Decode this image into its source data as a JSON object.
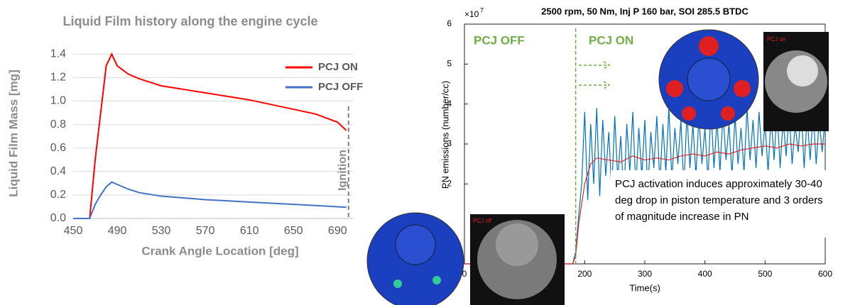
{
  "chart_data": [
    {
      "type": "line",
      "title": "Liquid Film history along the engine cycle",
      "x_label": "Crank Angle Location [deg]",
      "y_label": "Liquid Film Mass [mg]",
      "x": [
        450,
        465,
        470,
        475,
        480,
        485,
        490,
        500,
        510,
        530,
        550,
        570,
        590,
        610,
        630,
        650,
        670,
        690,
        698
      ],
      "series": [
        {
          "name": "PCJ ON",
          "color": "#ff0000",
          "values": [
            0,
            0,
            0.5,
            0.9,
            1.3,
            1.4,
            1.3,
            1.23,
            1.19,
            1.13,
            1.1,
            1.07,
            1.04,
            1.01,
            0.97,
            0.93,
            0.89,
            0.82,
            0.75
          ]
        },
        {
          "name": "PCJ OFF",
          "color": "#4472c4",
          "values": [
            0,
            0,
            0.12,
            0.2,
            0.27,
            0.31,
            0.29,
            0.25,
            0.22,
            0.19,
            0.175,
            0.16,
            0.15,
            0.14,
            0.13,
            0.12,
            0.11,
            0.1,
            0.095
          ]
        }
      ],
      "xlim": [
        450,
        704
      ],
      "xticks": [
        450,
        490,
        530,
        570,
        610,
        650,
        690
      ],
      "ylim": [
        0,
        1.45
      ],
      "yticks": [
        {
          "value": 0,
          "label": "0.0"
        },
        0.2,
        0.4,
        0.6,
        0.8,
        {
          "value": 1,
          "label": "1.0"
        },
        1.2,
        1.4
      ],
      "grid": true,
      "legend": "upper right",
      "annotations": [
        {
          "text": "Ignition",
          "x": 700
        }
      ]
    },
    {
      "type": "line",
      "title": "2500 rpm, 50 Nm, Inj P 160 bar, SOI 285.5 BTDC",
      "x_label": "Time(s)",
      "y_label": "PN emissions (number/cc)",
      "y_multiplier": {
        "base": "×10",
        "exponent": "7"
      },
      "series": [
        {
          "color": "#0072bd",
          "x": [
            0,
            5,
            10,
            15,
            20,
            25,
            30,
            35,
            40,
            45,
            50,
            55,
            60,
            65,
            70,
            75,
            80,
            85,
            90,
            95,
            100,
            105,
            110,
            115,
            120,
            125,
            130,
            135,
            140,
            145,
            150,
            155,
            160,
            165,
            170,
            175,
            180,
            185,
            190,
            195,
            200,
            205,
            210,
            215,
            220,
            225,
            230,
            235,
            240,
            245,
            250,
            255,
            260,
            265,
            270,
            275,
            280,
            285,
            290,
            295,
            300,
            305,
            310,
            315,
            320,
            325,
            330,
            335,
            340,
            345,
            350,
            355,
            360,
            365,
            370,
            375,
            380,
            385,
            390,
            395,
            400,
            405,
            410,
            415,
            420,
            425,
            430,
            435,
            440,
            445,
            450,
            455,
            460,
            465,
            470,
            475,
            480,
            485,
            490,
            495,
            500,
            505,
            510,
            515,
            520,
            525,
            530,
            535,
            540,
            545,
            550,
            555,
            560,
            565,
            570,
            575,
            580,
            585,
            590,
            595,
            600
          ],
          "values": [
            0,
            0,
            0,
            0,
            0,
            0,
            0,
            0,
            0,
            0,
            0,
            0,
            0,
            0,
            0,
            0,
            0,
            0,
            0,
            0,
            0,
            0,
            0,
            0,
            0,
            0,
            0,
            0,
            0,
            0,
            0,
            0,
            0,
            0,
            0,
            0,
            0,
            0.3,
            1.2,
            2.0,
            3.8,
            1.6,
            3.5,
            2.0,
            3.9,
            1.7,
            3.6,
            2.2,
            3.3,
            1.8,
            3.7,
            2.1,
            3.2,
            1.6,
            3.5,
            2.3,
            3.8,
            1.9,
            3.4,
            2.2,
            3.6,
            1.8,
            3.3,
            2.4,
            3.7,
            2.0,
            3.5,
            2.3,
            3.9,
            2.1,
            3.4,
            2.5,
            3.6,
            1.9,
            3.8,
            2.4,
            3.5,
            2.2,
            3.7,
            2.5,
            3.4,
            2.1,
            3.9,
            2.4,
            3.6,
            2.3,
            3.8,
            2.6,
            3.5,
            2.2,
            3.7,
            2.5,
            3.4,
            2.3,
            3.9,
            2.6,
            3.6,
            2.4,
            3.8,
            2.7,
            3.5,
            2.3,
            3.7,
            2.6,
            3.9,
            2.4,
            3.6,
            2.7,
            3.8,
            2.5,
            3.5,
            2.8,
            3.9,
            2.4,
            3.7,
            2.6,
            3.8,
            2.5,
            3.6,
            2.8,
            3.7
          ]
        },
        {
          "color": "#d62728",
          "x": [
            0,
            180,
            185,
            190,
            200,
            210,
            220,
            240,
            260,
            280,
            300,
            320,
            340,
            360,
            380,
            400,
            420,
            440,
            460,
            480,
            500,
            520,
            540,
            560,
            580,
            600
          ],
          "values": [
            0,
            0,
            0.2,
            1.0,
            2.0,
            2.5,
            2.65,
            2.6,
            2.55,
            2.7,
            2.6,
            2.65,
            2.6,
            2.7,
            2.75,
            2.7,
            2.8,
            2.75,
            2.85,
            2.9,
            2.95,
            2.9,
            3.0,
            2.95,
            3.0,
            3.0
          ]
        }
      ],
      "xlim": [
        0,
        600
      ],
      "xticks": [
        0,
        200,
        300,
        400,
        500,
        600
      ],
      "ylim": [
        0,
        6
      ],
      "yticks": [
        2,
        3,
        4,
        5,
        6
      ],
      "annotations": [
        {
          "text": "PCJ OFF",
          "color": "#70ad47"
        },
        {
          "text": "PCJ ON",
          "color": "#70ad47",
          "x": 185
        },
        {
          "text": "PCJ activation induces approximately 30-40"
        },
        {
          "text": "deg drop in piston temperature and 3 orders"
        },
        {
          "text": "of magnitude increase in PN"
        }
      ],
      "image_labels": [
        "PCJ on",
        "PCJ off"
      ]
    }
  ]
}
